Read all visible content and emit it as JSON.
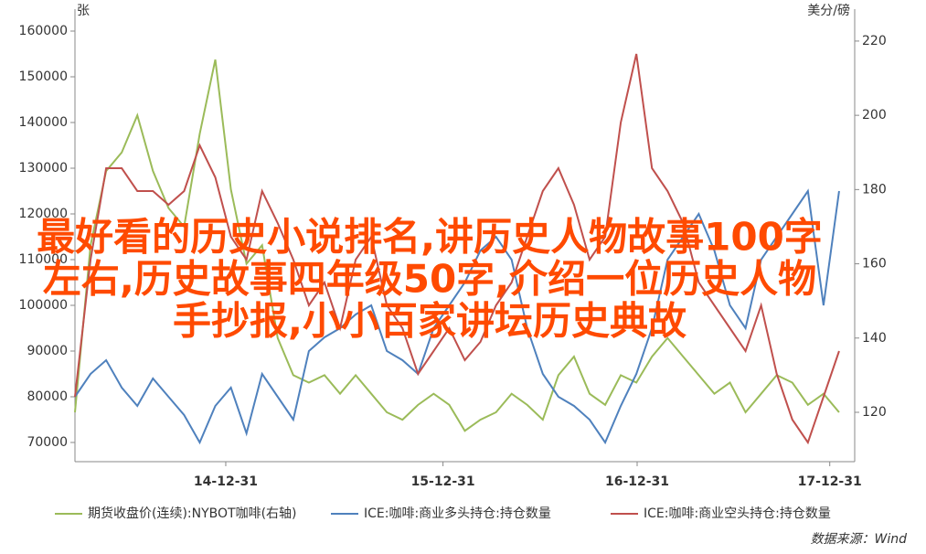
{
  "chart_data": {
    "type": "line",
    "y_unit_label": "张",
    "y2_unit_label": "美分/磅",
    "x": [
      0,
      1,
      2,
      3,
      4,
      5,
      6,
      7,
      8,
      9,
      10,
      11,
      12,
      13,
      14,
      15,
      16,
      17,
      18,
      19,
      20,
      21,
      22,
      23,
      24,
      25,
      26,
      27,
      28,
      29,
      30,
      31,
      32,
      33,
      34,
      35,
      36,
      37,
      38,
      39,
      40,
      41,
      42,
      43,
      44,
      45,
      46,
      47,
      48,
      49
    ],
    "xlim": [
      0,
      50
    ],
    "xticks": [
      {
        "value": 9.67,
        "label": "14-12-31"
      },
      {
        "value": 23.6,
        "label": "15-12-31"
      },
      {
        "value": 36.05,
        "label": "16-12-31"
      },
      {
        "value": 48.4,
        "label": "17-12-31"
      }
    ],
    "ylim": [
      65800,
      164800
    ],
    "yticks": [
      70000,
      80000,
      90000,
      100000,
      110000,
      120000,
      130000,
      140000,
      150000,
      160000
    ],
    "y2lim": [
      106.7,
      228.6
    ],
    "y2ticks": [
      120,
      140,
      160,
      180,
      200,
      220
    ],
    "series": [
      {
        "name": "期货收盘价(连续):NYBOT咖啡(右轴)",
        "color": "#9bbb59",
        "axis": "y2",
        "values": [
          120,
          165,
          185,
          190,
          200,
          185,
          175,
          170,
          195,
          215,
          180,
          160,
          165,
          140,
          130,
          128,
          130,
          125,
          130,
          125,
          120,
          118,
          122,
          125,
          122,
          115,
          118,
          120,
          125,
          122,
          118,
          130,
          135,
          125,
          122,
          130,
          128,
          135,
          140,
          135,
          130,
          125,
          128,
          120,
          125,
          130,
          128,
          122,
          125,
          120
        ]
      },
      {
        "name": "ICE:咖啡:商业多头持仓:持仓数量",
        "color": "#4f81bd",
        "values": [
          80000,
          85000,
          88000,
          82000,
          78000,
          84000,
          80000,
          76000,
          70000,
          78000,
          82000,
          72000,
          85000,
          80000,
          75000,
          90000,
          93000,
          95000,
          98000,
          100000,
          90000,
          88000,
          85000,
          95000,
          100000,
          105000,
          112000,
          115000,
          110000,
          95000,
          85000,
          80000,
          78000,
          75000,
          70000,
          78000,
          85000,
          95000,
          110000,
          115000,
          120000,
          112000,
          100000,
          95000,
          110000,
          115000,
          120000,
          125000,
          100000,
          125000
        ]
      },
      {
        "name": "ICE:咖啡:商业空头持仓:持仓数量",
        "color": "#c0504d",
        "values": [
          80000,
          110000,
          130000,
          130000,
          125000,
          125000,
          122000,
          125000,
          135000,
          128000,
          115000,
          110000,
          125000,
          118000,
          110000,
          100000,
          105000,
          95000,
          110000,
          115000,
          100000,
          95000,
          85000,
          90000,
          95000,
          88000,
          92000,
          100000,
          105000,
          115000,
          125000,
          130000,
          122000,
          110000,
          115000,
          140000,
          155000,
          130000,
          125000,
          118000,
          105000,
          100000,
          95000,
          90000,
          100000,
          85000,
          75000,
          70000,
          80000,
          90000
        ]
      }
    ],
    "annotations": [
      "最好看的历史小说排名,讲历史人物故事100字",
      "左右,历史故事四年级50字,介绍一位历史人物",
      "手抄报,小小百家讲坛历史典故"
    ],
    "source": "数据来源：Wind"
  }
}
